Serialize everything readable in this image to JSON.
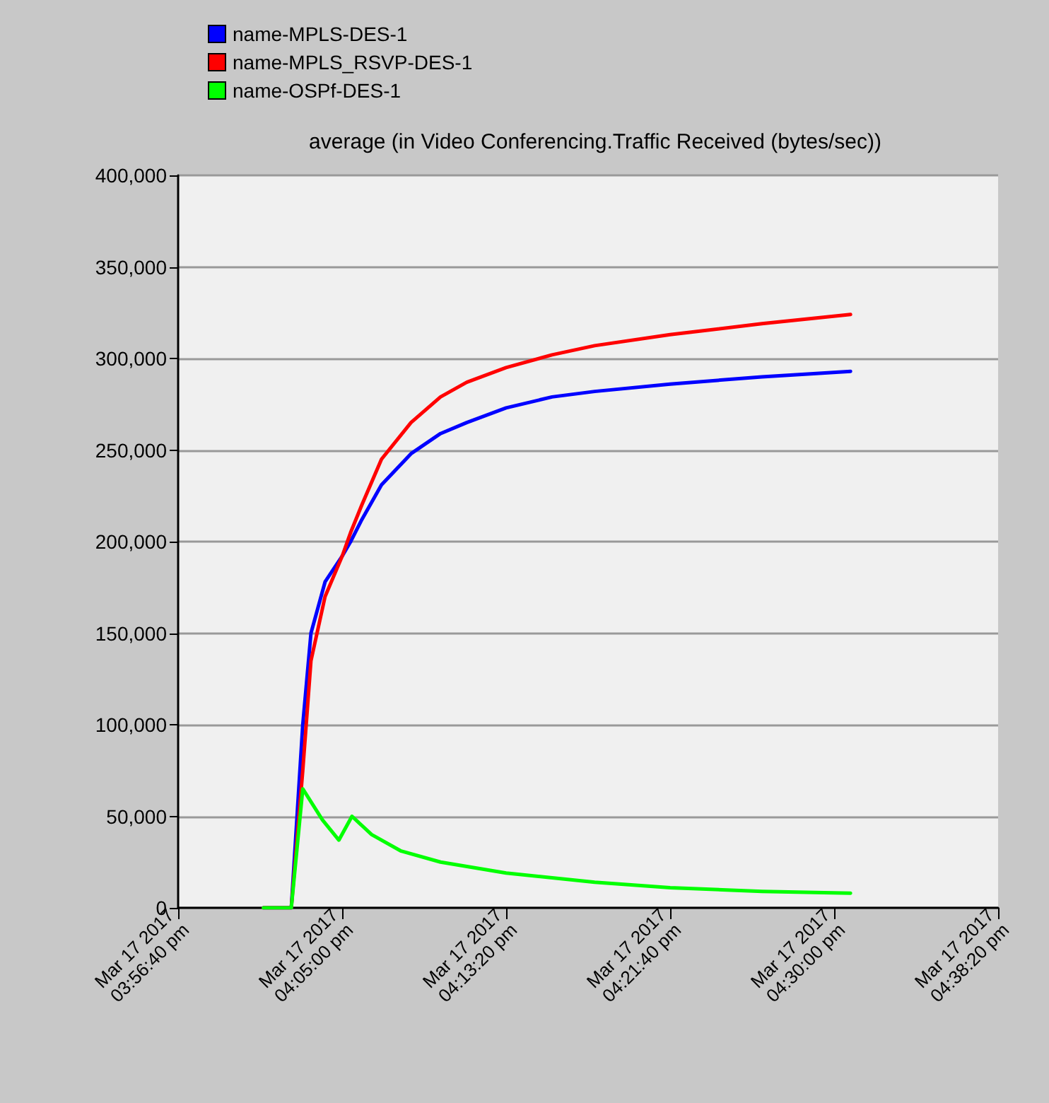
{
  "chart_data": {
    "type": "line",
    "title": "average (in Video Conferencing.Traffic Received (bytes/sec))",
    "x": [
      "2017-03-17T16:01:00",
      "2017-03-17T16:02:25",
      "2017-03-17T16:03:00",
      "2017-03-17T16:03:25",
      "2017-03-17T16:04:08",
      "2017-03-17T16:05:00",
      "2017-03-17T16:05:26",
      "2017-03-17T16:06:00",
      "2017-03-17T16:07:00",
      "2017-03-17T16:08:30",
      "2017-03-17T16:10:00",
      "2017-03-17T16:11:20",
      "2017-03-17T16:13:20",
      "2017-03-17T16:15:40",
      "2017-03-17T16:17:50",
      "2017-03-17T16:21:40",
      "2017-03-17T16:26:20",
      "2017-03-17T16:30:50"
    ],
    "series": [
      {
        "name": "name-MPLS-DES-1",
        "color": "#0000ff",
        "values": [
          0,
          0,
          100000,
          150000,
          178000,
          192000,
          200000,
          212000,
          231000,
          248000,
          259000,
          265000,
          273000,
          279000,
          282000,
          286000,
          290000,
          293000
        ]
      },
      {
        "name": "name-MPLS_RSVP-DES-1",
        "color": "#ff0000",
        "values": [
          0,
          0,
          75000,
          135000,
          170000,
          192000,
          205000,
          220000,
          245000,
          265000,
          279000,
          287000,
          295000,
          302000,
          307000,
          313000,
          319000,
          324000
        ]
      },
      {
        "name": "name-OSPf-DES-1",
        "color": "#00ff00",
        "x": [
          "2017-03-17T16:01:00",
          "2017-03-17T16:02:25",
          "2017-03-17T16:03:00",
          "2017-03-17T16:04:00",
          "2017-03-17T16:04:50",
          "2017-03-17T16:05:30",
          "2017-03-17T16:06:30",
          "2017-03-17T16:08:00",
          "2017-03-17T16:10:00",
          "2017-03-17T16:13:20",
          "2017-03-17T16:17:50",
          "2017-03-17T16:21:40",
          "2017-03-17T16:26:20",
          "2017-03-17T16:30:50"
        ],
        "values": [
          0,
          0,
          65000,
          48000,
          37000,
          50000,
          40000,
          31000,
          25000,
          19000,
          14000,
          11000,
          9000,
          8000
        ]
      }
    ],
    "xlim": [
      "2017-03-17T15:56:40",
      "2017-03-17T16:38:20"
    ],
    "xticks": [
      {
        "value": "2017-03-17T15:56:40",
        "label": "Mar 17 2017 03:56:40 pm"
      },
      {
        "value": "2017-03-17T16:05:00",
        "label": "Mar 17 2017 04:05:00 pm"
      },
      {
        "value": "2017-03-17T16:13:20",
        "label": "Mar 17 2017 04:13:20 pm"
      },
      {
        "value": "2017-03-17T16:21:40",
        "label": "Mar 17 2017 04:21:40 pm"
      },
      {
        "value": "2017-03-17T16:30:00",
        "label": "Mar 17 2017 04:30:00 pm"
      },
      {
        "value": "2017-03-17T16:38:20",
        "label": "Mar 17 2017 04:38:20 pm"
      }
    ],
    "ylim": [
      0,
      400000
    ],
    "yticks": [
      {
        "value": 0,
        "label": "0"
      },
      {
        "value": 50000,
        "label": "50,000"
      },
      {
        "value": 100000,
        "label": "100,000"
      },
      {
        "value": 150000,
        "label": "150,000"
      },
      {
        "value": 200000,
        "label": "200,000"
      },
      {
        "value": 250000,
        "label": "250,000"
      },
      {
        "value": 300000,
        "label": "300,000"
      },
      {
        "value": 350000,
        "label": "350,000"
      },
      {
        "value": 400000,
        "label": "400,000"
      }
    ],
    "grid": "y",
    "legend": "top left",
    "marker": "none",
    "line_style": "solid"
  }
}
